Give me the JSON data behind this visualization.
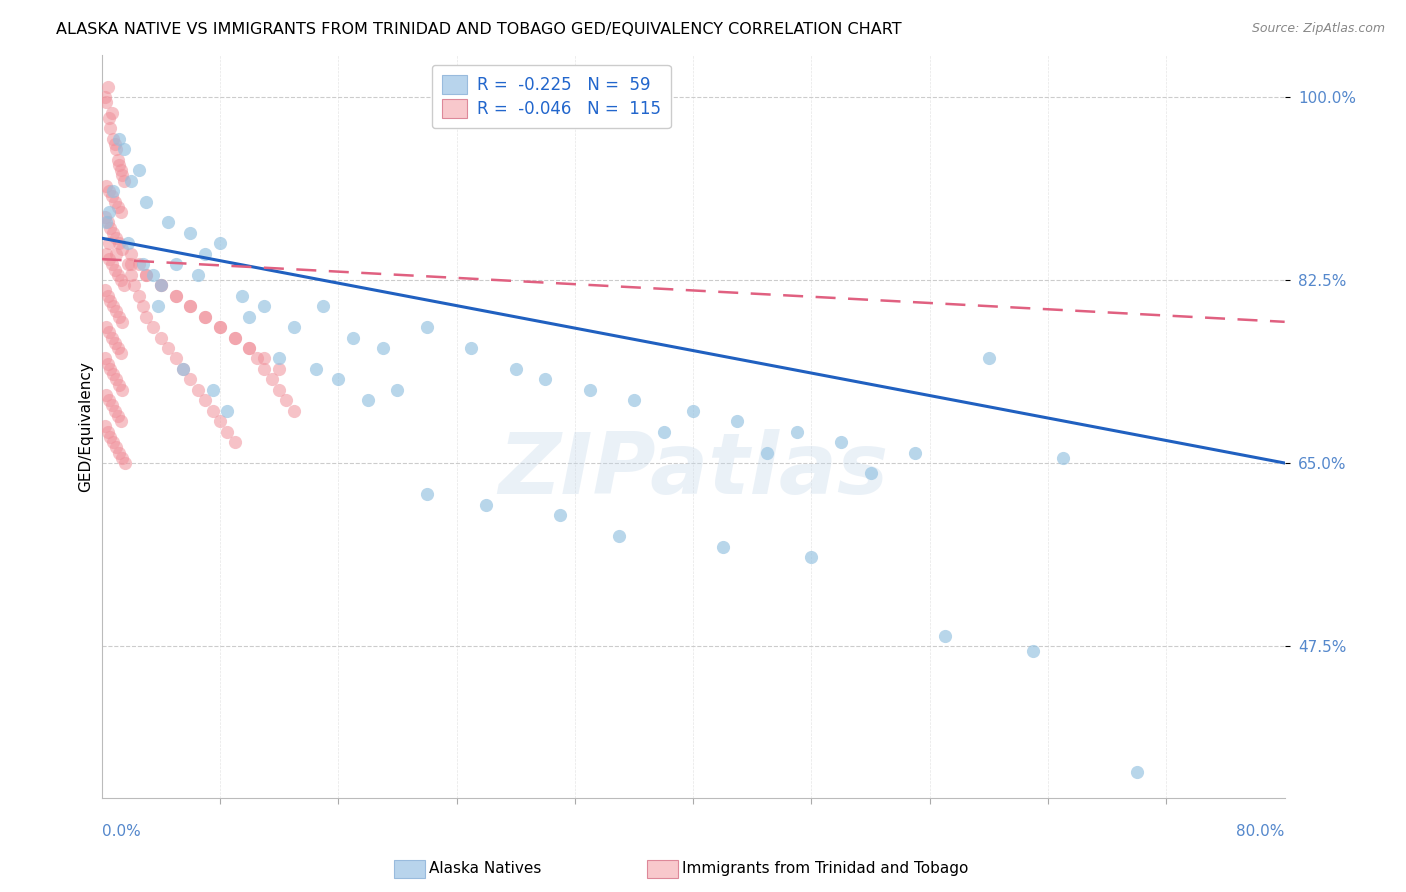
{
  "title": "ALASKA NATIVE VS IMMIGRANTS FROM TRINIDAD AND TOBAGO GED/EQUIVALENCY CORRELATION CHART",
  "source": "Source: ZipAtlas.com",
  "ylabel": "GED/Equivalency",
  "yticks": [
    100.0,
    82.5,
    65.0,
    47.5
  ],
  "ytick_labels": [
    "100.0%",
    "82.5%",
    "65.0%",
    "47.5%"
  ],
  "xmin": 0.0,
  "xmax": 80.0,
  "ymin": 33.0,
  "ymax": 104.0,
  "legend_label_blue": "R =  -0.225   N =  59",
  "legend_label_pink": "R =  -0.046   N =  115",
  "legend_patch_blue": "#b8d4ec",
  "legend_patch_pink": "#f8c8cc",
  "scatter_blue_color": "#92c0e0",
  "scatter_pink_color": "#f0909a",
  "scatter_blue_edge": "#92c0e0",
  "scatter_pink_edge": "#f0909a",
  "scatter_alpha_blue": 0.65,
  "scatter_alpha_pink": 0.55,
  "scatter_size": 90,
  "blue_trend_color": "#2060c0",
  "blue_trend_y0": 86.5,
  "blue_trend_y1": 65.0,
  "pink_trend_color": "#e06080",
  "pink_trend_y0": 84.5,
  "pink_trend_y1": 78.5,
  "grid_color": "#cccccc",
  "axis_label_color": "#5588cc",
  "watermark_text": "ZIPatlas",
  "bg_color": "#ffffff",
  "title_fontsize": 11.5,
  "bottom_legend_blue": "Alaska Natives",
  "bottom_legend_pink": "Immigrants from Trinidad and Tobago",
  "blue_x": [
    1.2,
    0.8,
    2.5,
    1.5,
    0.5,
    3.0,
    4.5,
    2.0,
    6.0,
    8.0,
    5.0,
    3.5,
    7.0,
    4.0,
    9.5,
    11.0,
    0.3,
    1.8,
    2.8,
    6.5,
    10.0,
    13.0,
    15.0,
    17.0,
    19.0,
    12.0,
    14.5,
    16.0,
    20.0,
    22.0,
    18.0,
    8.5,
    7.5,
    5.5,
    3.8,
    25.0,
    28.0,
    30.0,
    33.0,
    36.0,
    40.0,
    43.0,
    47.0,
    50.0,
    55.0,
    60.0,
    65.0,
    38.0,
    45.0,
    52.0,
    22.0,
    26.0,
    31.0,
    35.0,
    42.0,
    48.0,
    57.0,
    63.0,
    70.0
  ],
  "blue_y": [
    96.0,
    91.0,
    93.0,
    95.0,
    89.0,
    90.0,
    88.0,
    92.0,
    87.0,
    86.0,
    84.0,
    83.0,
    85.0,
    82.0,
    81.0,
    80.0,
    88.0,
    86.0,
    84.0,
    83.0,
    79.0,
    78.0,
    80.0,
    77.0,
    76.0,
    75.0,
    74.0,
    73.0,
    72.0,
    78.0,
    71.0,
    70.0,
    72.0,
    74.0,
    80.0,
    76.0,
    74.0,
    73.0,
    72.0,
    71.0,
    70.0,
    69.0,
    68.0,
    67.0,
    66.0,
    75.0,
    65.5,
    68.0,
    66.0,
    64.0,
    62.0,
    61.0,
    60.0,
    58.0,
    57.0,
    56.0,
    48.5,
    47.0,
    35.5
  ],
  "pink_x": [
    0.2,
    0.3,
    0.4,
    0.5,
    0.6,
    0.7,
    0.8,
    0.9,
    1.0,
    1.1,
    1.2,
    1.3,
    1.4,
    1.5,
    0.3,
    0.5,
    0.7,
    0.9,
    1.1,
    1.3,
    0.2,
    0.4,
    0.6,
    0.8,
    1.0,
    1.2,
    1.4,
    0.3,
    0.5,
    0.7,
    0.9,
    1.1,
    1.3,
    1.5,
    0.2,
    0.4,
    0.6,
    0.8,
    1.0,
    1.2,
    1.4,
    0.3,
    0.5,
    0.7,
    0.9,
    1.1,
    1.3,
    0.2,
    0.4,
    0.6,
    0.8,
    1.0,
    1.2,
    1.4,
    0.3,
    0.5,
    0.7,
    0.9,
    1.1,
    1.3,
    0.2,
    0.4,
    0.6,
    0.8,
    1.0,
    1.2,
    1.4,
    1.6,
    1.8,
    2.0,
    2.2,
    2.5,
    2.8,
    3.0,
    3.5,
    4.0,
    4.5,
    5.0,
    5.5,
    6.0,
    6.5,
    7.0,
    7.5,
    8.0,
    8.5,
    9.0,
    2.0,
    2.5,
    3.0,
    4.0,
    5.0,
    6.0,
    7.0,
    8.0,
    9.0,
    10.0,
    10.5,
    11.0,
    11.5,
    12.0,
    12.5,
    13.0,
    0.5,
    1.0,
    2.0,
    3.0,
    4.0,
    5.0,
    6.0,
    7.0,
    8.0,
    9.0,
    10.0,
    11.0,
    12.0
  ],
  "pink_y": [
    100.0,
    99.5,
    101.0,
    98.0,
    97.0,
    98.5,
    96.0,
    95.5,
    95.0,
    94.0,
    93.5,
    93.0,
    92.5,
    92.0,
    91.5,
    91.0,
    90.5,
    90.0,
    89.5,
    89.0,
    88.5,
    88.0,
    87.5,
    87.0,
    86.5,
    86.0,
    85.5,
    85.0,
    84.5,
    84.0,
    83.5,
    83.0,
    82.5,
    82.0,
    81.5,
    81.0,
    80.5,
    80.0,
    79.5,
    79.0,
    78.5,
    78.0,
    77.5,
    77.0,
    76.5,
    76.0,
    75.5,
    75.0,
    74.5,
    74.0,
    73.5,
    73.0,
    72.5,
    72.0,
    71.5,
    71.0,
    70.5,
    70.0,
    69.5,
    69.0,
    68.5,
    68.0,
    67.5,
    67.0,
    66.5,
    66.0,
    65.5,
    65.0,
    84.0,
    83.0,
    82.0,
    81.0,
    80.0,
    79.0,
    78.0,
    77.0,
    76.0,
    75.0,
    74.0,
    73.0,
    72.0,
    71.0,
    70.0,
    69.0,
    68.0,
    67.0,
    85.0,
    84.0,
    83.0,
    82.0,
    81.0,
    80.0,
    79.0,
    78.0,
    77.0,
    76.0,
    75.0,
    74.0,
    73.0,
    72.0,
    71.0,
    70.0,
    86.0,
    85.0,
    84.0,
    83.0,
    82.0,
    81.0,
    80.0,
    79.0,
    78.0,
    77.0,
    76.0,
    75.0,
    74.0
  ]
}
